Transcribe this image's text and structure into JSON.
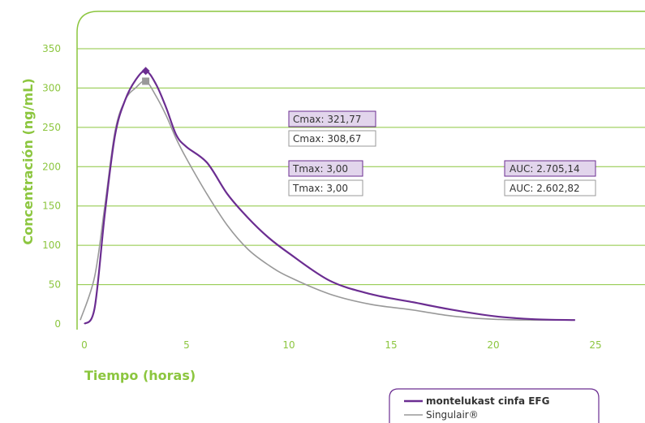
{
  "chart_data": {
    "type": "line",
    "title": "",
    "xlabel": "Tiempo (horas)",
    "ylabel": "Concentración (ng/mL)",
    "xlim": [
      0,
      25
    ],
    "ylim": [
      0,
      350
    ],
    "xticks": [
      "0",
      "5",
      "10",
      "15",
      "20",
      "25"
    ],
    "yticks": [
      "0",
      "50",
      "100",
      "150",
      "200",
      "250",
      "300",
      "350"
    ],
    "grid": "horizontal",
    "legend_position": "bottom-right",
    "colors": {
      "frame": "#8cc63f",
      "grid": "#8cc63f",
      "text": "#8cc63f"
    },
    "series": [
      {
        "name": "montelukast cinfa EFG",
        "color": "#6b2d91",
        "x": [
          0,
          0.5,
          1,
          1.5,
          2,
          2.5,
          3,
          3.5,
          4,
          4.5,
          5,
          6,
          7,
          8,
          9,
          10,
          12,
          14,
          16,
          18,
          20,
          22,
          24
        ],
        "y": [
          0,
          20,
          140,
          240,
          285,
          310,
          321.77,
          305,
          275,
          240,
          225,
          205,
          165,
          135,
          110,
          90,
          55,
          38,
          28,
          18,
          10,
          6,
          5
        ]
      },
      {
        "name": "Singulair®",
        "color": "#999999",
        "x": [
          -0.2,
          0.5,
          1,
          1.5,
          2,
          2.5,
          3,
          3.5,
          4,
          4.5,
          5,
          6,
          7,
          8,
          9,
          10,
          12,
          14,
          16,
          18,
          20,
          22,
          24
        ],
        "y": [
          5,
          60,
          150,
          245,
          285,
          300,
          308.67,
          290,
          265,
          235,
          210,
          165,
          125,
          95,
          75,
          60,
          38,
          25,
          18,
          10,
          6,
          5,
          5
        ]
      }
    ],
    "markers": [
      {
        "series": 0,
        "x": 3,
        "y": 321.77,
        "shape": "diamond"
      },
      {
        "series": 1,
        "x": 3,
        "y": 308.67,
        "shape": "square"
      }
    ],
    "annotations": [
      {
        "text": "Cmax: 321,77",
        "style": "purple"
      },
      {
        "text": "Cmax: 308,67",
        "style": "gray"
      },
      {
        "text": "Tmax: 3,00",
        "style": "purple"
      },
      {
        "text": "Tmax: 3,00",
        "style": "gray"
      },
      {
        "text": "AUC: 2.705,14",
        "style": "purple"
      },
      {
        "text": "AUC: 2.602,82",
        "style": "gray"
      }
    ]
  }
}
